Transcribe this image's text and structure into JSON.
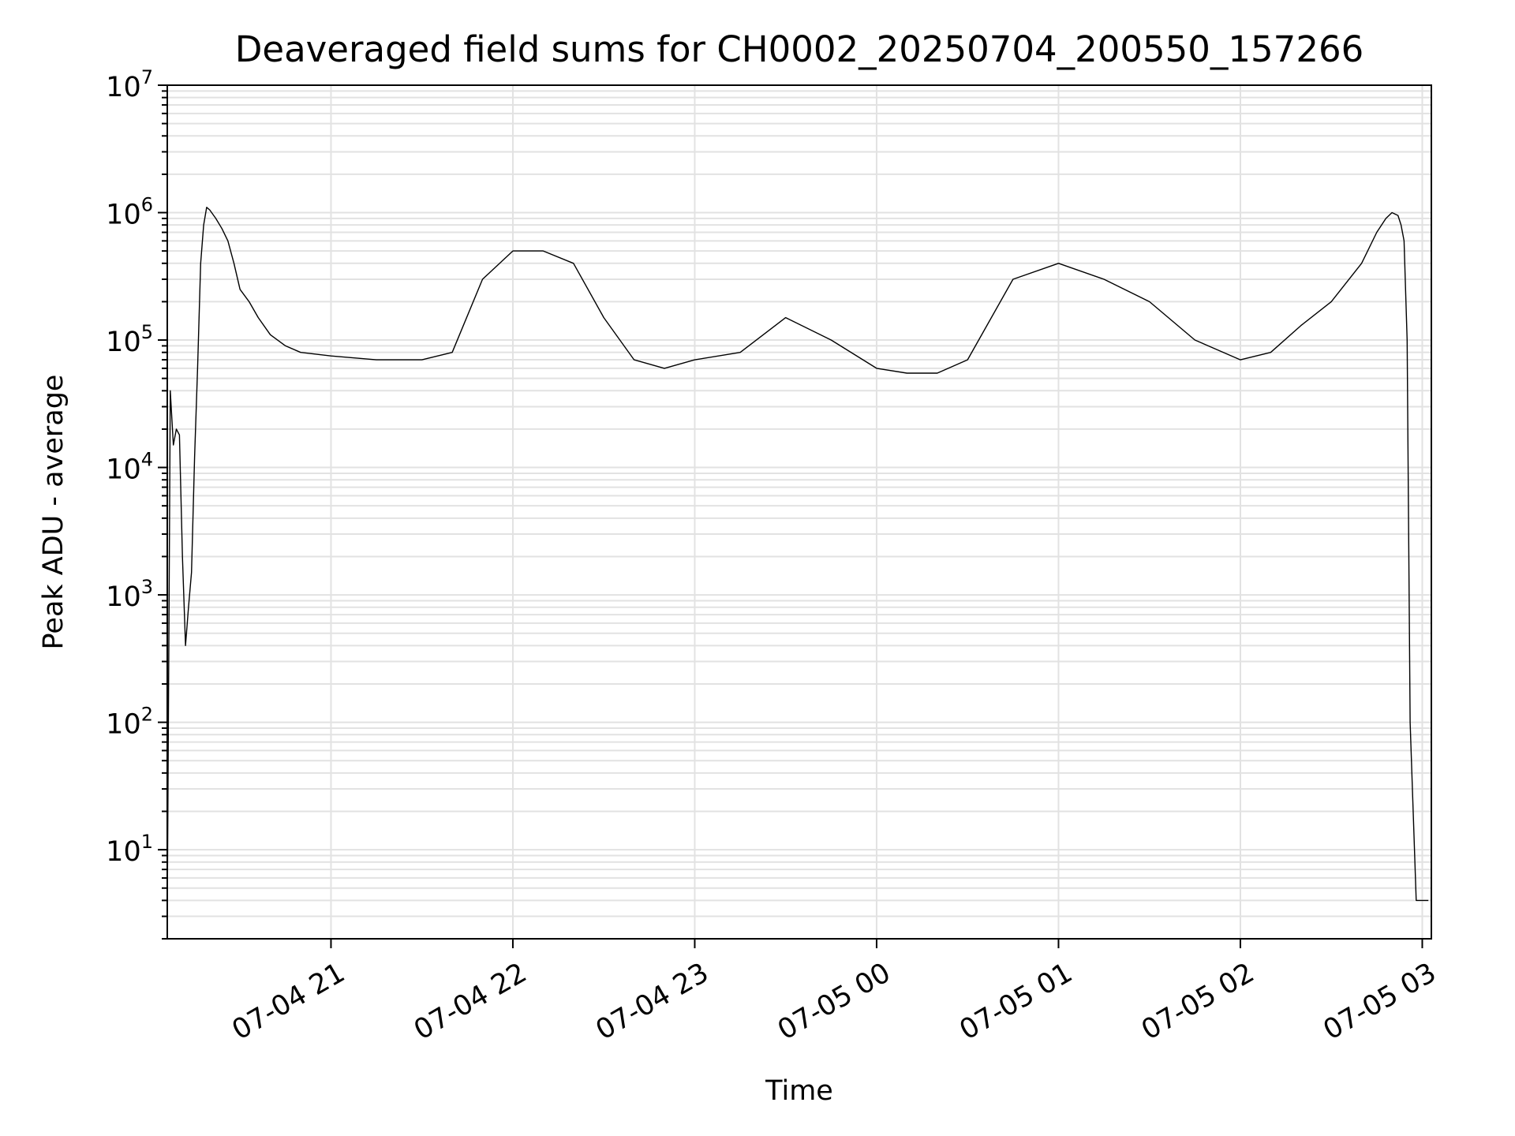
{
  "chart_data": {
    "type": "line",
    "title": "Deaveraged field sums for CH0002_20250704_200550_157266",
    "xlabel": "Time",
    "ylabel": "Peak ADU - average",
    "xscale": "time",
    "yscale": "log",
    "xlim": [
      "2025-07-04 20:06",
      "2025-07-05 03:03"
    ],
    "ylim": [
      2,
      10000000
    ],
    "grid": "both (major and minor)",
    "legend": "none",
    "x_ticks": [
      "2025-07-04 21:00",
      "2025-07-04 22:00",
      "2025-07-04 23:00",
      "2025-07-05 00:00",
      "2025-07-05 01:00",
      "2025-07-05 02:00",
      "2025-07-05 03:00"
    ],
    "x_tick_labels": [
      "07-04 21",
      "07-04 22",
      "07-04 23",
      "07-05 00",
      "07-05 01",
      "07-05 02",
      "07-05 03"
    ],
    "y_ticks": [
      {
        "base": "10",
        "exp": "1",
        "value": 10
      },
      {
        "base": "10",
        "exp": "2",
        "value": 100
      },
      {
        "base": "10",
        "exp": "3",
        "value": 1000
      },
      {
        "base": "10",
        "exp": "4",
        "value": 10000
      },
      {
        "base": "10",
        "exp": "5",
        "value": 100000
      },
      {
        "base": "10",
        "exp": "6",
        "value": 1000000
      },
      {
        "base": "10",
        "exp": "7",
        "value": 10000000
      }
    ],
    "line_color": "#000000",
    "series": [
      {
        "x": [
          "2025-07-04 20:06",
          "2025-07-04 20:07",
          "2025-07-04 20:08",
          "2025-07-04 20:09",
          "2025-07-04 20:10",
          "2025-07-04 20:11",
          "2025-07-04 20:12",
          "2025-07-04 20:13",
          "2025-07-04 20:14",
          "2025-07-04 20:15",
          "2025-07-04 20:16",
          "2025-07-04 20:17",
          "2025-07-04 20:18",
          "2025-07-04 20:19",
          "2025-07-04 20:20",
          "2025-07-04 20:22",
          "2025-07-04 20:24",
          "2025-07-04 20:26",
          "2025-07-04 20:28",
          "2025-07-04 20:30",
          "2025-07-04 20:33",
          "2025-07-04 20:36",
          "2025-07-04 20:40",
          "2025-07-04 20:45",
          "2025-07-04 20:50",
          "2025-07-04 21:00",
          "2025-07-04 21:15",
          "2025-07-04 21:30",
          "2025-07-04 21:40",
          "2025-07-04 21:50",
          "2025-07-04 22:00",
          "2025-07-04 22:10",
          "2025-07-04 22:20",
          "2025-07-04 22:30",
          "2025-07-04 22:40",
          "2025-07-04 22:50",
          "2025-07-04 23:00",
          "2025-07-04 23:15",
          "2025-07-04 23:30",
          "2025-07-04 23:45",
          "2025-07-05 00:00",
          "2025-07-05 00:10",
          "2025-07-05 00:20",
          "2025-07-05 00:30",
          "2025-07-05 00:45",
          "2025-07-05 01:00",
          "2025-07-05 01:15",
          "2025-07-05 01:30",
          "2025-07-05 01:45",
          "2025-07-05 02:00",
          "2025-07-05 02:10",
          "2025-07-05 02:20",
          "2025-07-05 02:30",
          "2025-07-05 02:40",
          "2025-07-05 02:45",
          "2025-07-05 02:48",
          "2025-07-05 02:50",
          "2025-07-05 02:52",
          "2025-07-05 02:53",
          "2025-07-05 02:54",
          "2025-07-05 02:55",
          "2025-07-05 02:56",
          "2025-07-05 02:58",
          "2025-07-05 03:00",
          "2025-07-05 03:02"
        ],
        "y": [
          3,
          40000,
          15000,
          20000,
          18000,
          2000,
          400,
          800,
          1500,
          12000,
          60000,
          400000,
          800000,
          1100000,
          1050000,
          900000,
          750000,
          600000,
          400000,
          250000,
          200000,
          150000,
          110000,
          90000,
          80000,
          75000,
          70000,
          70000,
          80000,
          300000,
          500000,
          500000,
          400000,
          150000,
          70000,
          60000,
          70000,
          80000,
          150000,
          100000,
          60000,
          55000,
          55000,
          70000,
          300000,
          400000,
          300000,
          200000,
          100000,
          70000,
          80000,
          130000,
          200000,
          400000,
          700000,
          900000,
          1000000,
          950000,
          800000,
          600000,
          100000,
          100,
          4,
          4,
          4
        ]
      }
    ]
  }
}
